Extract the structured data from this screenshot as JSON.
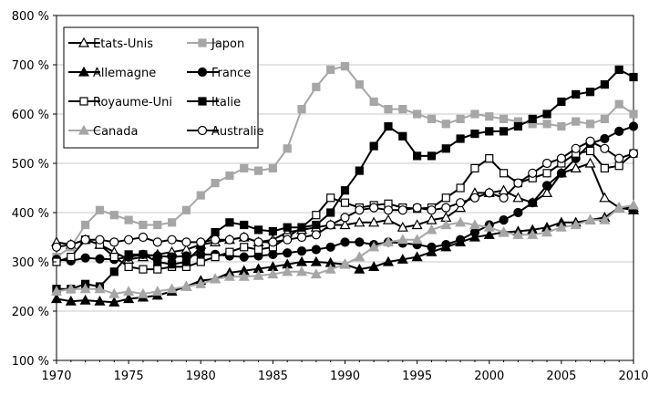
{
  "chart_data": {
    "type": "line",
    "title": "",
    "xlabel": "",
    "ylabel": "",
    "xlim": [
      1970,
      2010
    ],
    "ylim": [
      100,
      800
    ],
    "grid": true,
    "legend_position": "top-left",
    "x_ticks": [
      1970,
      1975,
      1980,
      1985,
      1990,
      1995,
      2000,
      2005,
      2010
    ],
    "x_tick_labels": [
      "1970",
      "1975",
      "1980",
      "1985",
      "1990",
      "1995",
      "2000",
      "2005",
      "2010"
    ],
    "y_ticks": [
      100,
      200,
      300,
      400,
      500,
      600,
      700,
      800
    ],
    "y_tick_labels": [
      "100 %",
      "200 %",
      "300 %",
      "400 %",
      "500 %",
      "600 %",
      "700 %",
      "800 %"
    ],
    "x": [
      1970,
      1971,
      1972,
      1973,
      1974,
      1975,
      1976,
      1977,
      1978,
      1979,
      1980,
      1981,
      1982,
      1983,
      1984,
      1985,
      1986,
      1987,
      1988,
      1989,
      1990,
      1991,
      1992,
      1993,
      1994,
      1995,
      1996,
      1997,
      1998,
      1999,
      2000,
      2001,
      2002,
      2003,
      2004,
      2005,
      2006,
      2007,
      2008,
      2009,
      2010
    ],
    "series": [
      {
        "name": "Etats-Unis",
        "marker": "triangle-open",
        "color": "#000000",
        "values": [
          340,
          335,
          345,
          335,
          320,
          305,
          310,
          315,
          320,
          325,
          335,
          340,
          345,
          350,
          340,
          345,
          360,
          365,
          370,
          375,
          375,
          380,
          380,
          385,
          370,
          375,
          385,
          390,
          410,
          440,
          440,
          445,
          430,
          420,
          440,
          480,
          490,
          500,
          430,
          410,
          410
        ]
      },
      {
        "name": "Japon",
        "marker": "square-filled",
        "color": "#a6a6a6",
        "values": [
          310,
          330,
          375,
          405,
          395,
          385,
          375,
          375,
          380,
          405,
          435,
          460,
          475,
          490,
          485,
          490,
          530,
          610,
          655,
          690,
          697,
          660,
          625,
          610,
          610,
          600,
          590,
          580,
          590,
          600,
          595,
          590,
          585,
          580,
          580,
          575,
          585,
          580,
          590,
          620,
          600
        ]
      },
      {
        "name": "Allemagne",
        "marker": "triangle-filled",
        "color": "#000000",
        "values": [
          225,
          220,
          222,
          220,
          218,
          225,
          228,
          232,
          240,
          250,
          262,
          265,
          278,
          282,
          286,
          290,
          295,
          300,
          300,
          298,
          295,
          285,
          290,
          300,
          305,
          310,
          320,
          330,
          340,
          350,
          355,
          360,
          362,
          365,
          370,
          380,
          380,
          385,
          390,
          410,
          405
        ]
      },
      {
        "name": "France",
        "marker": "circle-filled",
        "color": "#000000",
        "values": [
          305,
          302,
          308,
          306,
          305,
          310,
          315,
          312,
          310,
          312,
          315,
          315,
          312,
          310,
          312,
          315,
          318,
          322,
          325,
          330,
          340,
          340,
          335,
          340,
          338,
          335,
          330,
          335,
          345,
          360,
          375,
          385,
          400,
          420,
          455,
          480,
          510,
          540,
          550,
          565,
          575
        ]
      },
      {
        "name": "Royaume-Uni",
        "marker": "square-open",
        "color": "#000000",
        "values": [
          300,
          310,
          345,
          335,
          310,
          290,
          285,
          285,
          290,
          290,
          300,
          310,
          320,
          330,
          325,
          330,
          350,
          370,
          395,
          430,
          420,
          410,
          415,
          418,
          410,
          408,
          410,
          430,
          450,
          490,
          510,
          480,
          460,
          470,
          480,
          500,
          520,
          525,
          490,
          495,
          520
        ]
      },
      {
        "name": "Italie",
        "marker": "square-filled",
        "color": "#000000",
        "values": [
          245,
          245,
          255,
          250,
          280,
          315,
          315,
          300,
          295,
          300,
          330,
          360,
          380,
          375,
          365,
          362,
          370,
          370,
          375,
          400,
          445,
          485,
          535,
          575,
          555,
          515,
          515,
          530,
          550,
          560,
          565,
          565,
          575,
          590,
          600,
          625,
          640,
          645,
          660,
          690,
          675
        ]
      },
      {
        "name": "Canada",
        "marker": "triangle-filled",
        "color": "#a6a6a6",
        "values": [
          240,
          245,
          245,
          245,
          235,
          240,
          235,
          240,
          245,
          250,
          255,
          265,
          270,
          270,
          272,
          275,
          280,
          280,
          275,
          285,
          295,
          310,
          330,
          340,
          345,
          345,
          365,
          375,
          380,
          375,
          370,
          360,
          355,
          355,
          360,
          370,
          375,
          385,
          385,
          410,
          415
        ]
      },
      {
        "name": "Australie",
        "marker": "circle-open",
        "color": "#000000",
        "values": [
          330,
          335,
          345,
          345,
          340,
          345,
          350,
          340,
          345,
          340,
          340,
          345,
          345,
          350,
          340,
          340,
          345,
          350,
          355,
          375,
          390,
          405,
          410,
          405,
          405,
          410,
          405,
          410,
          420,
          430,
          440,
          430,
          460,
          480,
          500,
          510,
          530,
          545,
          530,
          510,
          520
        ]
      }
    ]
  }
}
